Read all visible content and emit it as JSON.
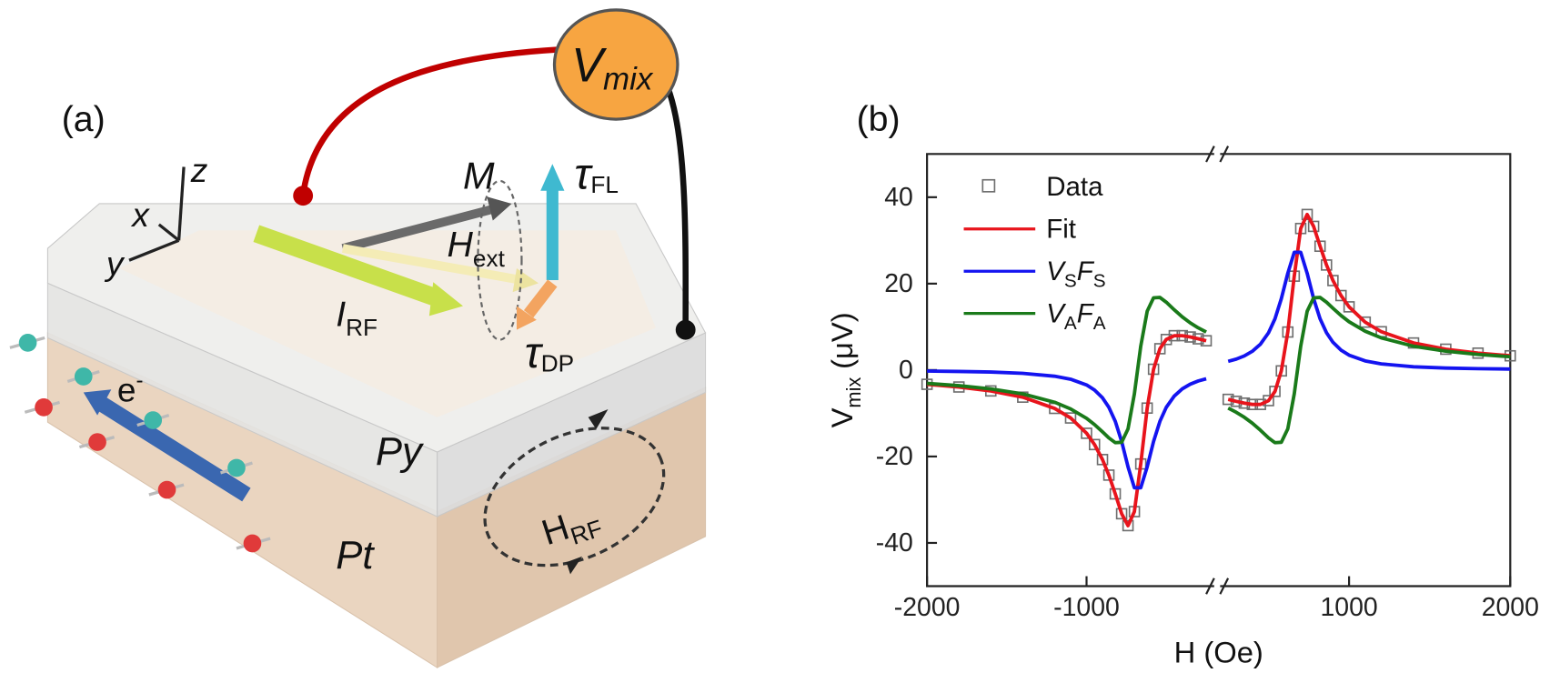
{
  "diagram": {
    "panel_label": "(a)",
    "labels": {
      "v_mix": {
        "main": "V",
        "sub": "mix"
      },
      "z": "z",
      "x": "x",
      "y": "y",
      "m": "M",
      "tau_fl": {
        "main": "τ",
        "sub": "FL"
      },
      "h_ext": {
        "main": "H",
        "sub": "ext"
      },
      "i_rf": {
        "main": "I",
        "sub": "RF"
      },
      "tau_dp": {
        "main": "τ",
        "sub": "DP"
      },
      "electron": {
        "main": "e",
        "sup": "-"
      },
      "py": "Py",
      "pt": "Pt",
      "h_rf": {
        "main": "H",
        "sub": "RF"
      }
    }
  },
  "chart_data": {
    "type": "line",
    "panel_label": "(b)",
    "xlabel": "H (Oe)",
    "ylabel": {
      "main": "V",
      "sub": "mix",
      "unit": "(μV)"
    },
    "x": [
      -2000,
      -1800,
      -1600,
      -1400,
      -1200,
      -1100,
      -1000,
      -950,
      -900,
      -860,
      -820,
      -780,
      -740,
      -700,
      -660,
      -620,
      -580,
      -540,
      -500,
      -450,
      -400,
      -350,
      -300,
      -250,
      250,
      300,
      350,
      400,
      450,
      500,
      540,
      580,
      620,
      660,
      700,
      740,
      780,
      820,
      860,
      900,
      950,
      1000,
      1100,
      1200,
      1400,
      1600,
      1800,
      2000
    ],
    "xlim": [
      -2000,
      2000
    ],
    "xbreak": [
      -200,
      200
    ],
    "xticks": [
      -2000,
      -1000,
      1000,
      2000
    ],
    "ylim": [
      -50,
      50
    ],
    "yticks": [
      -40,
      -20,
      0,
      20,
      40
    ],
    "legend": "upper left",
    "series": [
      {
        "name": "Data",
        "style": "marker",
        "color": "#6e6e6e",
        "values": [
          -3.3,
          -3.92,
          -4.83,
          -6.27,
          -8.87,
          -11.09,
          -14.63,
          -17.24,
          -20.71,
          -24.31,
          -28.66,
          -33.25,
          -36,
          -32.76,
          -21.73,
          -8.8,
          0.19,
          4.94,
          7.07,
          7.95,
          7.96,
          7.65,
          7.23,
          6.78,
          -6.78,
          -7.23,
          -7.65,
          -7.96,
          -7.95,
          -7.07,
          -4.94,
          -0.19,
          8.8,
          21.73,
          32.76,
          36,
          33.25,
          28.66,
          24.31,
          20.71,
          17.24,
          14.63,
          11.09,
          8.87,
          6.27,
          4.83,
          3.92,
          3.3
        ]
      },
      {
        "name": "Fit",
        "style": "line",
        "color": "#e8141c",
        "values": [
          -3.3,
          -3.92,
          -4.83,
          -6.27,
          -8.87,
          -11.09,
          -14.63,
          -17.24,
          -20.71,
          -24.31,
          -28.66,
          -33.25,
          -36,
          -32.76,
          -21.73,
          -8.8,
          0.19,
          4.94,
          7.07,
          7.95,
          7.96,
          7.65,
          7.23,
          6.78,
          -6.78,
          -7.23,
          -7.65,
          -7.96,
          -7.95,
          -7.07,
          -4.94,
          -0.19,
          8.8,
          21.73,
          32.76,
          36,
          33.25,
          28.66,
          24.31,
          20.71,
          17.24,
          14.63,
          11.09,
          8.87,
          6.27,
          4.83,
          3.92,
          3.3
        ]
      },
      {
        "name": "VSFS",
        "subscripts": true,
        "style": "line",
        "color": "#1414f0",
        "values": [
          -0.23,
          -0.32,
          -0.47,
          -0.76,
          -1.42,
          -2.11,
          -3.45,
          -4.62,
          -6.42,
          -8.62,
          -11.86,
          -16.53,
          -22.4,
          -27.24,
          -27.24,
          -22.4,
          -16.53,
          -11.86,
          -8.62,
          -5.99,
          -4.35,
          -3.27,
          -2.54,
          -2.02,
          2.02,
          2.54,
          3.27,
          4.35,
          5.99,
          8.62,
          11.86,
          16.53,
          22.4,
          27.24,
          27.24,
          22.4,
          16.53,
          11.86,
          8.62,
          6.42,
          4.62,
          3.45,
          2.11,
          1.42,
          0.76,
          0.47,
          0.32,
          0.23
        ]
      },
      {
        "name": "VAFA",
        "subscripts": true,
        "style": "line",
        "color": "#1a7a1a",
        "values": [
          -3.07,
          -3.6,
          -4.36,
          -5.51,
          -7.45,
          -8.98,
          -11.18,
          -12.62,
          -14.29,
          -15.69,
          -16.8,
          -16.72,
          -13.6,
          -5.51,
          5.51,
          13.6,
          16.72,
          16.8,
          15.69,
          13.94,
          12.31,
          10.92,
          9.77,
          8.8,
          -8.8,
          -9.77,
          -10.92,
          -12.31,
          -13.94,
          -15.69,
          -16.8,
          -16.72,
          -13.6,
          -5.51,
          5.51,
          13.6,
          16.72,
          16.8,
          15.69,
          14.29,
          12.62,
          11.18,
          8.98,
          7.45,
          5.51,
          4.36,
          3.6,
          3.07
        ]
      }
    ]
  }
}
